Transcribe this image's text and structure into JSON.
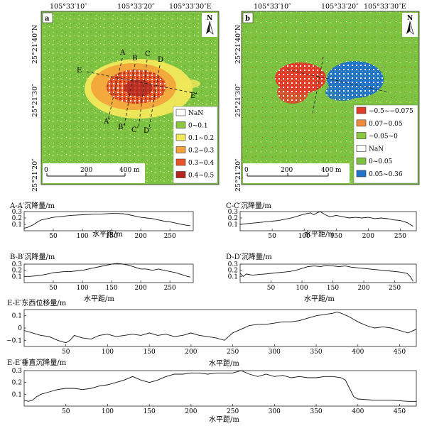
{
  "maps": {
    "top_coords": [
      "105°33′10″",
      "105°33′20″",
      "105°33′30″E"
    ],
    "lat_labels": [
      "25°21′40″N",
      "25°21′30″",
      "25°21′20″"
    ],
    "north": "N",
    "a": {
      "tag": "a",
      "profile_letters": [
        "A",
        "B",
        "C",
        "D",
        "E",
        "A′",
        "B′",
        "C′",
        "D′",
        "E′"
      ],
      "legend": [
        {
          "label": "NaN",
          "color": "#ffffff"
        },
        {
          "label": "0~0.1",
          "color": "#8dc63f"
        },
        {
          "label": "0.1~0.2",
          "color": "#f2e85a"
        },
        {
          "label": "0.2~0.3",
          "color": "#f4a23a"
        },
        {
          "label": "0.3~0.4",
          "color": "#e8542a"
        },
        {
          "label": "0.4~0.5",
          "color": "#b3261e"
        }
      ],
      "scale": [
        "0",
        "200",
        "400 m"
      ]
    },
    "b": {
      "tag": "b",
      "legend": [
        {
          "label": "−0.5~−0.075",
          "color": "#e23b2a"
        },
        {
          "label": "0.07~0.05",
          "color": "#f08a3c"
        },
        {
          "label": "−0.05~0",
          "color": "#8dc63f"
        },
        {
          "label": "NaN",
          "color": "#ffffff"
        },
        {
          "label": "0~0.05",
          "color": "#7fc241"
        },
        {
          "label": "0.05~0.36",
          "color": "#1f73c8"
        }
      ],
      "scale": [
        "0",
        "200",
        "400 m"
      ]
    }
  },
  "chart_data": [
    {
      "type": "line",
      "title": "A-A′沉降量/m",
      "xlabel": "水平距/m",
      "xlim": [
        0,
        290
      ],
      "ylim": [
        0,
        0.3
      ],
      "xticks": [
        50,
        100,
        150,
        200,
        250
      ],
      "yticks": [
        0.1,
        0.2,
        0.3
      ],
      "ytick_labels": [
        "0.1",
        "0.2",
        "0.3"
      ],
      "x": [
        0,
        5,
        10,
        15,
        20,
        25,
        30,
        40,
        50,
        60,
        70,
        80,
        90,
        100,
        110,
        120,
        130,
        140,
        150,
        160,
        170,
        180,
        190,
        200,
        210,
        220,
        230,
        240,
        250,
        260,
        270,
        280,
        285
      ],
      "y": [
        0.04,
        0.05,
        0.07,
        0.09,
        0.12,
        0.15,
        0.17,
        0.19,
        0.21,
        0.22,
        0.23,
        0.24,
        0.245,
        0.25,
        0.255,
        0.26,
        0.26,
        0.265,
        0.27,
        0.27,
        0.265,
        0.25,
        0.23,
        0.21,
        0.2,
        0.19,
        0.17,
        0.15,
        0.14,
        0.12,
        0.1,
        0.085,
        0.08
      ]
    },
    {
      "type": "line",
      "title": "C-C′沉降量/m",
      "xlabel": "水平距/m",
      "xlim": [
        0,
        275
      ],
      "ylim": [
        0,
        0.3
      ],
      "xticks": [
        50,
        100,
        150,
        200,
        250
      ],
      "yticks": [
        0.1,
        0.2,
        0.3
      ],
      "ytick_labels": [
        "0.1",
        "0.2",
        "0.3"
      ],
      "x": [
        0,
        10,
        20,
        30,
        40,
        50,
        60,
        70,
        80,
        90,
        100,
        110,
        115,
        120,
        125,
        130,
        135,
        140,
        150,
        160,
        170,
        180,
        190,
        200,
        210,
        220,
        230,
        240,
        250,
        260,
        265,
        270
      ],
      "y": [
        0.1,
        0.11,
        0.12,
        0.13,
        0.14,
        0.15,
        0.16,
        0.18,
        0.2,
        0.23,
        0.26,
        0.28,
        0.25,
        0.28,
        0.3,
        0.27,
        0.24,
        0.22,
        0.24,
        0.22,
        0.2,
        0.21,
        0.2,
        0.21,
        0.19,
        0.2,
        0.19,
        0.17,
        0.16,
        0.13,
        0.1,
        0.07
      ]
    },
    {
      "type": "line",
      "title": "B-B′沉降量/m",
      "xlabel": "水平距/m",
      "xlim": [
        0,
        290
      ],
      "ylim": [
        0,
        0.3
      ],
      "xticks": [
        50,
        100,
        150,
        200,
        250
      ],
      "yticks": [
        0.1,
        0.2,
        0.3
      ],
      "ytick_labels": [
        "0.1",
        "0.2",
        "0.3"
      ],
      "x": [
        0,
        10,
        20,
        30,
        40,
        50,
        60,
        70,
        80,
        90,
        100,
        110,
        120,
        130,
        140,
        150,
        160,
        170,
        180,
        190,
        200,
        210,
        220,
        230,
        240,
        250,
        260,
        270,
        280,
        285
      ],
      "y": [
        0.1,
        0.1,
        0.11,
        0.12,
        0.14,
        0.16,
        0.17,
        0.18,
        0.18,
        0.19,
        0.2,
        0.22,
        0.24,
        0.26,
        0.28,
        0.3,
        0.31,
        0.3,
        0.28,
        0.25,
        0.22,
        0.22,
        0.2,
        0.22,
        0.2,
        0.18,
        0.16,
        0.13,
        0.1,
        0.09
      ]
    },
    {
      "type": "line",
      "title": "D-D′沉降量/m",
      "xlabel": "水平距/m",
      "xlim": [
        0,
        285
      ],
      "ylim": [
        0,
        0.3
      ],
      "xticks": [
        50,
        100,
        150,
        200,
        250
      ],
      "yticks": [
        0.1,
        0.2,
        0.3
      ],
      "ytick_labels": [
        "0.1",
        "0.2",
        "0.3"
      ],
      "x": [
        0,
        5,
        10,
        20,
        30,
        40,
        50,
        60,
        70,
        80,
        90,
        100,
        110,
        120,
        130,
        140,
        150,
        160,
        170,
        180,
        190,
        200,
        210,
        220,
        230,
        240,
        250,
        260,
        270,
        275,
        280
      ],
      "y": [
        0.15,
        0.1,
        0.14,
        0.12,
        0.13,
        0.14,
        0.15,
        0.16,
        0.17,
        0.18,
        0.2,
        0.23,
        0.26,
        0.27,
        0.26,
        0.28,
        0.27,
        0.26,
        0.27,
        0.25,
        0.24,
        0.23,
        0.22,
        0.21,
        0.2,
        0.19,
        0.18,
        0.17,
        0.15,
        0.1,
        0.02
      ]
    },
    {
      "type": "line",
      "title": "E-E′东西位移量/m",
      "xlabel": "水平距/m",
      "xlim": [
        0,
        470
      ],
      "ylim": [
        -0.15,
        0.15
      ],
      "xticks": [
        50,
        100,
        150,
        200,
        250,
        300,
        350,
        400,
        450
      ],
      "yticks": [
        -0.1,
        0,
        0.1
      ],
      "ytick_labels": [
        "−0.1",
        "0",
        "0.1"
      ],
      "x": [
        0,
        10,
        20,
        30,
        40,
        50,
        55,
        60,
        70,
        80,
        90,
        100,
        110,
        120,
        130,
        140,
        150,
        160,
        170,
        180,
        190,
        200,
        210,
        220,
        230,
        240,
        250,
        260,
        270,
        280,
        290,
        300,
        310,
        320,
        330,
        340,
        350,
        360,
        370,
        375,
        380,
        390,
        400,
        410,
        420,
        430,
        440,
        450,
        460,
        470
      ],
      "y": [
        -0.02,
        -0.04,
        -0.06,
        -0.07,
        -0.1,
        -0.12,
        -0.1,
        -0.06,
        -0.08,
        -0.09,
        -0.06,
        -0.05,
        -0.07,
        -0.06,
        -0.05,
        -0.06,
        -0.04,
        -0.06,
        -0.05,
        -0.07,
        -0.06,
        -0.04,
        -0.06,
        -0.07,
        -0.08,
        -0.1,
        -0.04,
        -0.01,
        0.02,
        0.03,
        0.03,
        0.04,
        0.05,
        0.05,
        0.06,
        0.08,
        0.1,
        0.11,
        0.12,
        0.13,
        0.12,
        0.09,
        0.05,
        0.02,
        0.0,
        0.01,
        0.0,
        -0.02,
        -0.04,
        -0.01
      ]
    },
    {
      "type": "line",
      "title": "E-E′垂直沉降量/m",
      "xlabel": "水平距/m",
      "xlim": [
        0,
        470
      ],
      "ylim": [
        0,
        0.3
      ],
      "xticks": [
        50,
        100,
        150,
        200,
        250,
        300,
        350,
        400,
        450
      ],
      "yticks": [
        0.1,
        0.2,
        0.3
      ],
      "ytick_labels": [
        "0.1",
        "0.2",
        "0.3"
      ],
      "x": [
        0,
        5,
        10,
        15,
        20,
        30,
        40,
        50,
        60,
        70,
        80,
        90,
        100,
        110,
        120,
        130,
        140,
        150,
        160,
        170,
        180,
        190,
        200,
        210,
        220,
        230,
        240,
        250,
        260,
        270,
        280,
        290,
        300,
        310,
        320,
        330,
        340,
        350,
        360,
        370,
        380,
        385,
        390,
        395,
        400,
        420,
        440,
        460,
        470
      ],
      "y": [
        0.05,
        0.04,
        0.05,
        0.08,
        0.1,
        0.12,
        0.14,
        0.15,
        0.15,
        0.14,
        0.15,
        0.17,
        0.18,
        0.2,
        0.22,
        0.25,
        0.22,
        0.2,
        0.22,
        0.25,
        0.27,
        0.27,
        0.28,
        0.28,
        0.27,
        0.28,
        0.28,
        0.28,
        0.3,
        0.27,
        0.25,
        0.27,
        0.25,
        0.26,
        0.24,
        0.25,
        0.24,
        0.24,
        0.25,
        0.25,
        0.24,
        0.22,
        0.15,
        0.08,
        0.06,
        0.05,
        0.05,
        0.04,
        0.04
      ]
    }
  ]
}
